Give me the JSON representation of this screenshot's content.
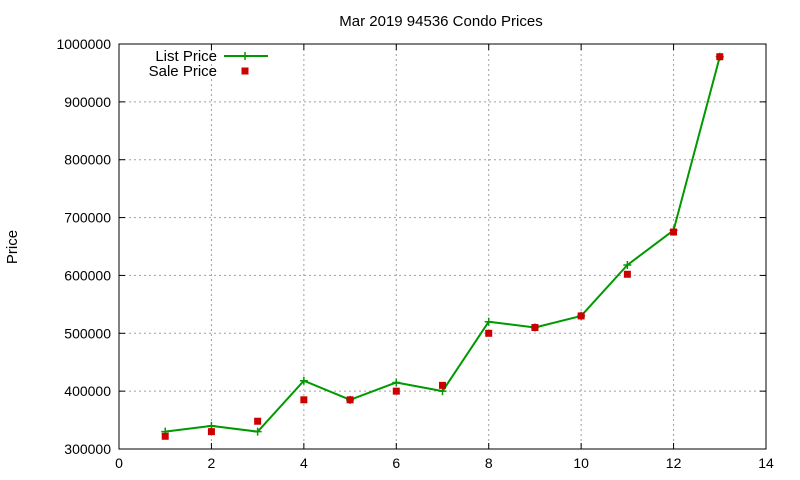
{
  "chart_data": {
    "type": "line",
    "title": "Mar 2019 94536 Condo Prices",
    "xlabel": "",
    "ylabel": "Price",
    "xlim": [
      0,
      14
    ],
    "ylim": [
      300000,
      1000000
    ],
    "x_ticks": [
      0,
      2,
      4,
      6,
      8,
      10,
      12,
      14
    ],
    "y_ticks": [
      300000,
      400000,
      500000,
      600000,
      700000,
      800000,
      900000,
      1000000
    ],
    "grid": true,
    "legend_position": "top-left",
    "series": [
      {
        "name": "List Price",
        "style": "line-with-plus-markers",
        "color": "#009900",
        "x": [
          1,
          2,
          3,
          4,
          5,
          6,
          7,
          8,
          9,
          10,
          11,
          12,
          13
        ],
        "y": [
          330000,
          340000,
          330000,
          418000,
          385000,
          415000,
          400000,
          520000,
          510000,
          530000,
          618000,
          678000,
          978000
        ]
      },
      {
        "name": "Sale Price",
        "style": "square-markers",
        "color": "#cc0000",
        "x": [
          1,
          2,
          3,
          4,
          5,
          6,
          7,
          8,
          9,
          10,
          11,
          12,
          13
        ],
        "y": [
          322000,
          330000,
          348000,
          385000,
          385000,
          400000,
          410000,
          500000,
          510000,
          530000,
          602000,
          675000,
          978000
        ]
      }
    ]
  }
}
